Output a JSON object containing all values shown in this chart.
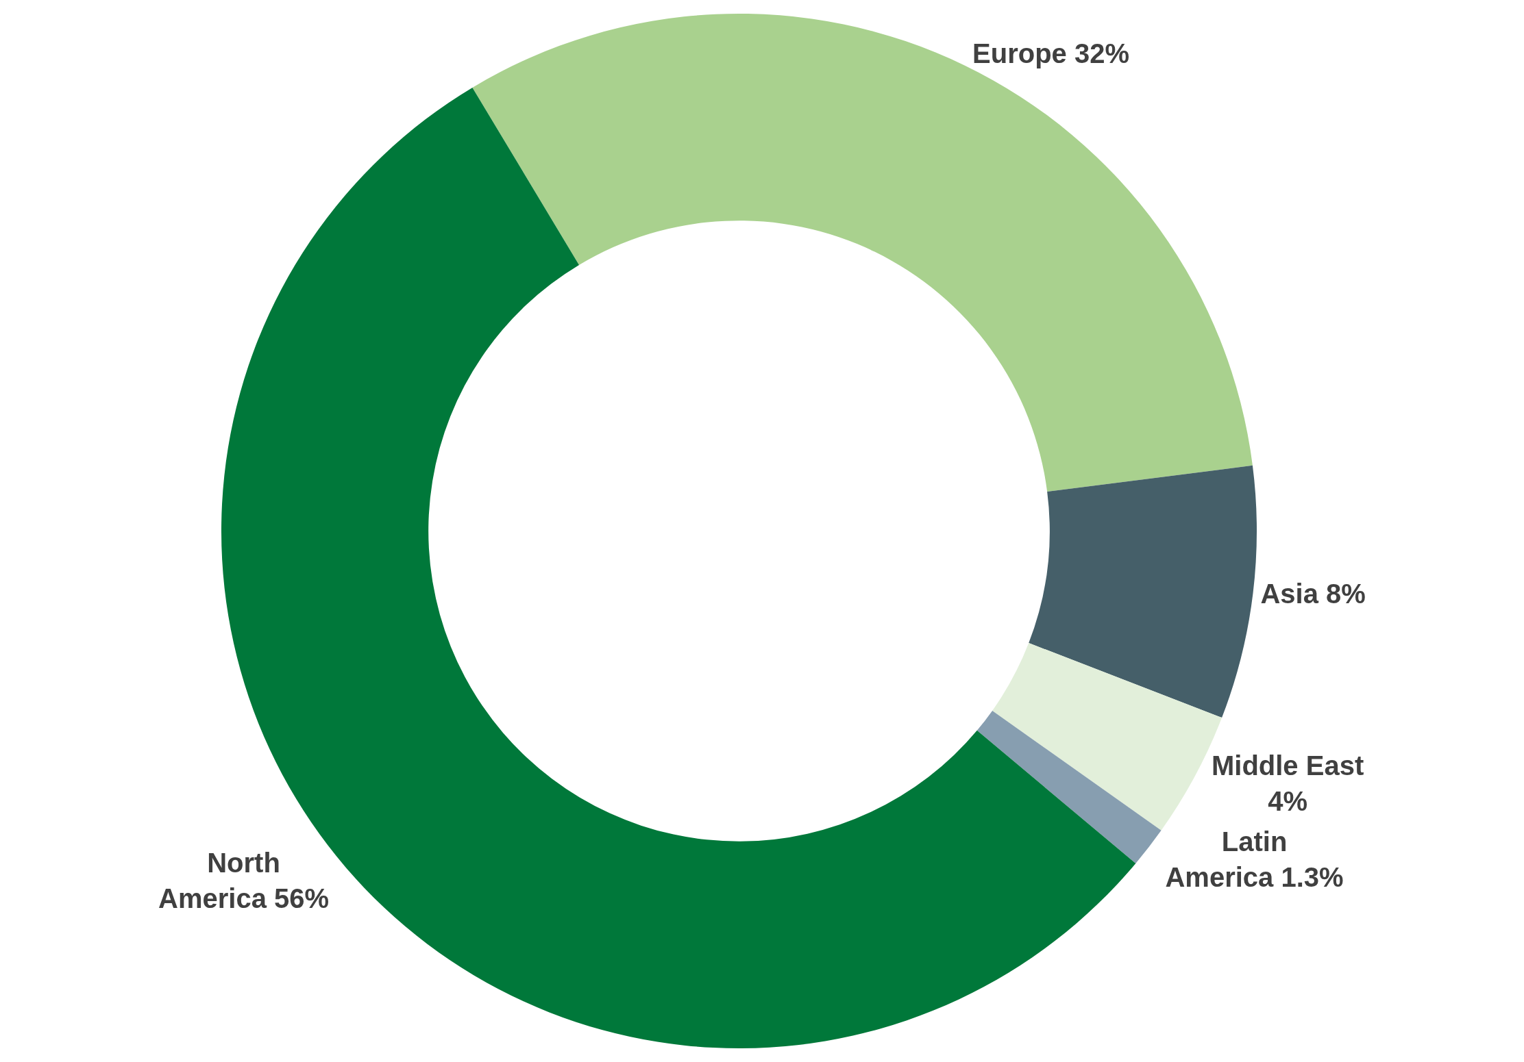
{
  "chart_data": {
    "type": "donut",
    "categories": [
      "Europe",
      "Asia",
      "Middle East",
      "Latin America",
      "North America"
    ],
    "values": [
      32,
      8,
      4,
      1.3,
      56
    ],
    "value_labels": [
      "32%",
      "8%",
      "4%",
      "1.3%",
      "56%"
    ],
    "colors": [
      "#a9d18e",
      "#455f69",
      "#e2efda",
      "#879eb0",
      "#00783a"
    ],
    "legend": false
  }
}
